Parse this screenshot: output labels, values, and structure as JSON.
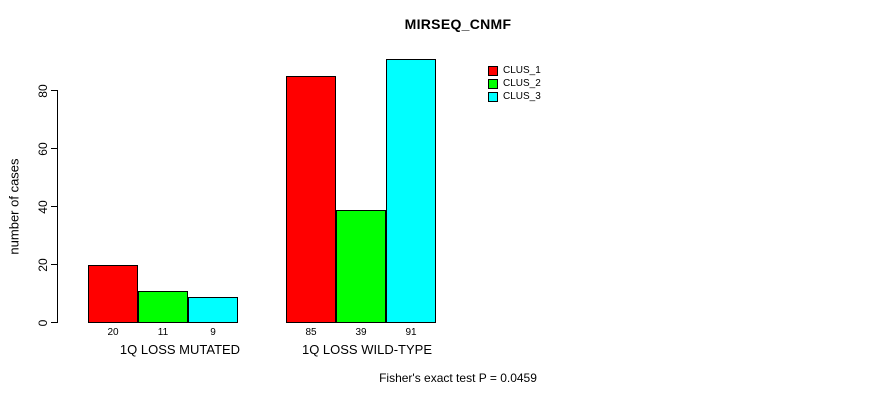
{
  "chart_data": {
    "type": "bar",
    "title": "MIRSEQ_CNMF",
    "xlabel": "",
    "ylabel": "number of cases",
    "categories": [
      "1Q LOSS MUTATED",
      "1Q LOSS WILD-TYPE"
    ],
    "series": [
      {
        "name": "CLUS_1",
        "color": "#ff0000",
        "values": [
          20,
          85
        ]
      },
      {
        "name": "CLUS_2",
        "color": "#00ff00",
        "values": [
          11,
          39
        ]
      },
      {
        "name": "CLUS_3",
        "color": "#00ffff",
        "values": [
          9,
          91
        ]
      }
    ],
    "yticks": [
      0,
      20,
      40,
      60,
      80
    ],
    "ylim": [
      0,
      92
    ],
    "grid": false,
    "legend_position": "top-right",
    "bar_outline_color": "#000000",
    "value_labels_shown": true,
    "annotation": "Fisher's exact test P = 0.0459"
  }
}
